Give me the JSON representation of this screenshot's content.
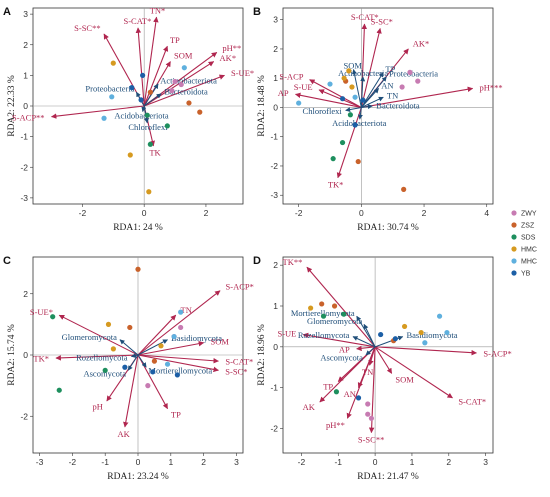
{
  "colors": {
    "env_arrow": "#b0264f",
    "taxon_arrow": "#1f4e79",
    "taxon_text": "#1f4e79"
  },
  "legend": {
    "items": [
      {
        "label": "ZWY",
        "color": "#c77bb2"
      },
      {
        "label": "ZSZ",
        "color": "#c9622b"
      },
      {
        "label": "SDS",
        "color": "#1e8f5e"
      },
      {
        "label": "HMC",
        "color": "#d69a20"
      },
      {
        "label": "MHC",
        "color": "#5fb0de"
      },
      {
        "label": "YB",
        "color": "#1c5fa6"
      }
    ]
  },
  "chart_data": [
    {
      "panel": "A",
      "type": "scatter",
      "xlabel": "RDA1: 24 %",
      "ylabel": "RDA2: 22.33 %",
      "xlim": [
        -3.6,
        3.2
      ],
      "ylim": [
        -3.2,
        3.2
      ],
      "xticks": [
        -2,
        0,
        2
      ],
      "yticks": [
        -3,
        -2,
        -1,
        0,
        1,
        2,
        3
      ],
      "env_vectors": [
        {
          "label": "TN*",
          "x": 0.4,
          "y": 2.9
        },
        {
          "label": "S-CAT*",
          "x": -0.2,
          "y": 2.55
        },
        {
          "label": "S-SC**",
          "x": -1.3,
          "y": 2.35
        },
        {
          "label": "TP",
          "x": 0.75,
          "y": 1.95
        },
        {
          "label": "SOM",
          "x": 0.85,
          "y": 1.45
        },
        {
          "label": "pH**",
          "x": 2.35,
          "y": 1.75
        },
        {
          "label": "AK*",
          "x": 2.25,
          "y": 1.45
        },
        {
          "label": "S-UE*",
          "x": 2.6,
          "y": 1.0
        },
        {
          "label": "S-ACP**",
          "x": -3.0,
          "y": -0.35
        },
        {
          "label": "TK",
          "x": 0.3,
          "y": -1.3
        }
      ],
      "taxa_vectors": [
        {
          "label": "Actinobacteriota",
          "x": 0.45,
          "y": 0.72
        },
        {
          "label": "Proteobacteria",
          "x": -0.25,
          "y": 0.45
        },
        {
          "label": "Bacteroidota",
          "x": 0.55,
          "y": 0.4
        },
        {
          "label": "Acidobacteriota",
          "x": -0.05,
          "y": -0.18
        },
        {
          "label": "Chloroflexi",
          "x": 0.1,
          "y": -0.55
        }
      ],
      "points": [
        {
          "group": "ZWY",
          "x": 1.0,
          "y": 0.8
        },
        {
          "group": "ZWY",
          "x": 1.2,
          "y": 0.7
        },
        {
          "group": "ZWY",
          "x": 0.9,
          "y": 0.5
        },
        {
          "group": "ZSZ",
          "x": 1.45,
          "y": 0.1
        },
        {
          "group": "ZSZ",
          "x": 1.8,
          "y": -0.2
        },
        {
          "group": "ZSZ",
          "x": 0.2,
          "y": 0.45
        },
        {
          "group": "SDS",
          "x": 0.2,
          "y": -1.25
        },
        {
          "group": "SDS",
          "x": 0.75,
          "y": -0.65
        },
        {
          "group": "SDS",
          "x": 0.1,
          "y": -0.3
        },
        {
          "group": "HMC",
          "x": -1.0,
          "y": 1.4
        },
        {
          "group": "HMC",
          "x": -0.45,
          "y": -1.6
        },
        {
          "group": "HMC",
          "x": 0.15,
          "y": -2.8
        },
        {
          "group": "MHC",
          "x": -1.05,
          "y": 0.3
        },
        {
          "group": "MHC",
          "x": -1.3,
          "y": -0.4
        },
        {
          "group": "MHC",
          "x": 1.3,
          "y": 1.25
        },
        {
          "group": "YB",
          "x": -0.4,
          "y": 0.6
        },
        {
          "group": "YB",
          "x": -0.05,
          "y": 1.0
        },
        {
          "group": "YB",
          "x": -0.1,
          "y": 0.2
        }
      ]
    },
    {
      "panel": "B",
      "type": "scatter",
      "xlabel": "RDA1: 30.74 %",
      "ylabel": "RDA2: 18.48 %",
      "xlim": [
        -2.5,
        4.2
      ],
      "ylim": [
        -3.3,
        3.4
      ],
      "xticks": [
        -2,
        0,
        2,
        4
      ],
      "yticks": [
        -3,
        -2,
        -1,
        0,
        1,
        2,
        3
      ],
      "env_vectors": [
        {
          "label": "S-CAT*",
          "x": 0.1,
          "y": 2.85
        },
        {
          "label": "S-SC*",
          "x": 0.6,
          "y": 2.7
        },
        {
          "label": "AK*",
          "x": 1.5,
          "y": 2.0
        },
        {
          "label": "pH***",
          "x": 3.55,
          "y": 0.65
        },
        {
          "label": "S-ACP",
          "x": -1.65,
          "y": 0.95
        },
        {
          "label": "AP",
          "x": -2.1,
          "y": 0.45
        },
        {
          "label": "S-UE",
          "x": -1.35,
          "y": 0.6
        },
        {
          "label": "TK*",
          "x": -0.75,
          "y": -2.4
        }
      ],
      "taxa_vectors": [
        {
          "label": "SOM",
          "x": -0.25,
          "y": 1.3
        },
        {
          "label": "Actinobacteria",
          "x": 0.05,
          "y": 1.05
        },
        {
          "label": "Proteobacteria",
          "x": 0.8,
          "y": 1.05
        },
        {
          "label": "TP",
          "x": 0.7,
          "y": 1.2
        },
        {
          "label": "AN",
          "x": 0.55,
          "y": 0.65
        },
        {
          "label": "TN",
          "x": 0.7,
          "y": 0.35
        },
        {
          "label": "Bacteroidota",
          "x": 0.35,
          "y": 0.05
        },
        {
          "label": "Chloroflexi",
          "x": -0.5,
          "y": -0.1
        },
        {
          "label": "Acidobacteriota",
          "x": -0.05,
          "y": -0.4
        }
      ],
      "points": [
        {
          "group": "ZWY",
          "x": 1.3,
          "y": 0.7
        },
        {
          "group": "ZWY",
          "x": 1.55,
          "y": 1.2
        },
        {
          "group": "ZWY",
          "x": 1.8,
          "y": 0.9
        },
        {
          "group": "ZSZ",
          "x": -0.5,
          "y": 0.9
        },
        {
          "group": "ZSZ",
          "x": 1.35,
          "y": -2.8
        },
        {
          "group": "ZSZ",
          "x": -0.1,
          "y": -1.85
        },
        {
          "group": "SDS",
          "x": -0.6,
          "y": -1.2
        },
        {
          "group": "SDS",
          "x": -0.35,
          "y": -0.25
        },
        {
          "group": "SDS",
          "x": -0.9,
          "y": -1.75
        },
        {
          "group": "HMC",
          "x": -0.4,
          "y": 1.25
        },
        {
          "group": "HMC",
          "x": -0.55,
          "y": 1.0
        },
        {
          "group": "HMC",
          "x": -0.3,
          "y": 0.7
        },
        {
          "group": "MHC",
          "x": -2.0,
          "y": 0.15
        },
        {
          "group": "MHC",
          "x": -0.2,
          "y": 0.35
        },
        {
          "group": "MHC",
          "x": -1.0,
          "y": 0.8
        },
        {
          "group": "YB",
          "x": -0.6,
          "y": 0.3
        },
        {
          "group": "YB",
          "x": 0.05,
          "y": 0.25
        },
        {
          "group": "YB",
          "x": -0.2,
          "y": -0.6
        }
      ]
    },
    {
      "panel": "C",
      "type": "scatter",
      "xlabel": "RDA1: 23.24 %",
      "ylabel": "RDA2: 15.74 %",
      "xlim": [
        -3.2,
        3.2
      ],
      "ylim": [
        -3.2,
        3.2
      ],
      "xticks": [
        -3,
        -2,
        -1,
        0,
        1,
        2,
        3
      ],
      "yticks": [
        -2,
        0,
        2
      ],
      "env_vectors": [
        {
          "label": "S-ACP*",
          "x": 2.5,
          "y": 2.1
        },
        {
          "label": "TN",
          "x": 1.15,
          "y": 1.3
        },
        {
          "label": "SOM",
          "x": 2.0,
          "y": 0.4
        },
        {
          "label": "S-UE*",
          "x": -2.4,
          "y": 1.3
        },
        {
          "label": "TK*",
          "x": -2.5,
          "y": -0.1
        },
        {
          "label": "S-CAT*",
          "x": 2.45,
          "y": -0.2
        },
        {
          "label": "S-SC*",
          "x": 2.45,
          "y": -0.5
        },
        {
          "label": "pH",
          "x": -0.95,
          "y": -1.5
        },
        {
          "label": "AK",
          "x": -0.4,
          "y": -2.35
        },
        {
          "label": "TP",
          "x": 0.9,
          "y": -1.75
        }
      ],
      "taxa_vectors": [
        {
          "label": "Glomeromycota",
          "x": -0.55,
          "y": 0.5
        },
        {
          "label": "Basidiomycota",
          "x": 0.9,
          "y": 0.5
        },
        {
          "label": "Rozellomycota",
          "x": -0.2,
          "y": -0.05
        },
        {
          "label": "Ascomycota",
          "x": -0.3,
          "y": -0.5
        },
        {
          "label": "Mortierellomycota",
          "x": 0.25,
          "y": -0.4
        }
      ],
      "points": [
        {
          "group": "ZWY",
          "x": 1.1,
          "y": 0.6
        },
        {
          "group": "ZWY",
          "x": 0.3,
          "y": -1.0
        },
        {
          "group": "ZWY",
          "x": 1.3,
          "y": 0.9
        },
        {
          "group": "ZSZ",
          "x": 0.0,
          "y": 2.8
        },
        {
          "group": "ZSZ",
          "x": -0.25,
          "y": 0.9
        },
        {
          "group": "ZSZ",
          "x": 0.5,
          "y": -0.2
        },
        {
          "group": "SDS",
          "x": -2.6,
          "y": 1.25
        },
        {
          "group": "SDS",
          "x": -2.4,
          "y": -1.15
        },
        {
          "group": "SDS",
          "x": -1.0,
          "y": -0.5
        },
        {
          "group": "HMC",
          "x": -0.9,
          "y": 1.0
        },
        {
          "group": "HMC",
          "x": -0.75,
          "y": 0.2
        },
        {
          "group": "HMC",
          "x": 0.7,
          "y": 0.3
        },
        {
          "group": "MHC",
          "x": 1.3,
          "y": 1.4
        },
        {
          "group": "MHC",
          "x": 0.9,
          "y": -0.3
        },
        {
          "group": "MHC",
          "x": 1.1,
          "y": 0.6
        },
        {
          "group": "YB",
          "x": -0.4,
          "y": -0.4
        },
        {
          "group": "YB",
          "x": 0.45,
          "y": -0.55
        },
        {
          "group": "YB",
          "x": 1.2,
          "y": -0.65
        }
      ]
    },
    {
      "panel": "D",
      "type": "scatter",
      "xlabel": "RDA1: 21.47 %",
      "ylabel": "RDA2: 18.96 %",
      "xlim": [
        -2.5,
        3.2
      ],
      "ylim": [
        -2.6,
        2.2
      ],
      "xticks": [
        -2,
        -1,
        0,
        1,
        2,
        3
      ],
      "yticks": [
        -2,
        -1,
        0,
        1,
        2
      ],
      "env_vectors": [
        {
          "label": "TK**",
          "x": -1.85,
          "y": 1.95
        },
        {
          "label": "S-UE",
          "x": -1.95,
          "y": 0.3
        },
        {
          "label": "S-ACP*",
          "x": 2.75,
          "y": -0.15
        },
        {
          "label": "S-CAT*",
          "x": 2.1,
          "y": -1.25
        },
        {
          "label": "SOM",
          "x": 0.45,
          "y": -0.65
        },
        {
          "label": "TN",
          "x": -0.15,
          "y": -0.45
        },
        {
          "label": "AN",
          "x": -0.45,
          "y": -1.0
        },
        {
          "label": "TP",
          "x": -1.0,
          "y": -0.85
        },
        {
          "label": "AK",
          "x": -1.5,
          "y": -1.35
        },
        {
          "label": "pH**",
          "x": -0.75,
          "y": -1.75
        },
        {
          "label": "S-SC**",
          "x": -0.1,
          "y": -2.1
        },
        {
          "label": "AP",
          "x": -0.5,
          "y": -0.05
        }
      ],
      "taxa_vectors": [
        {
          "label": "Mortierellomycota",
          "x": -0.5,
          "y": 0.75
        },
        {
          "label": "Glomeromycota",
          "x": -0.3,
          "y": 0.55
        },
        {
          "label": "Rozellomycota",
          "x": -0.6,
          "y": 0.25
        },
        {
          "label": "Basidiomycota",
          "x": 0.75,
          "y": 0.25
        },
        {
          "label": "Ascomycota",
          "x": -0.25,
          "y": -0.2
        }
      ],
      "points": [
        {
          "group": "ZWY",
          "x": -0.2,
          "y": -1.4
        },
        {
          "group": "ZWY",
          "x": -0.2,
          "y": -1.65
        },
        {
          "group": "ZWY",
          "x": -0.1,
          "y": -1.75
        },
        {
          "group": "ZSZ",
          "x": -1.45,
          "y": 1.05
        },
        {
          "group": "ZSZ",
          "x": -1.1,
          "y": 1.0
        },
        {
          "group": "ZSZ",
          "x": 0.5,
          "y": 0.15
        },
        {
          "group": "SDS",
          "x": -1.4,
          "y": 0.75
        },
        {
          "group": "SDS",
          "x": -0.85,
          "y": 0.8
        },
        {
          "group": "SDS",
          "x": -1.05,
          "y": -1.1
        },
        {
          "group": "HMC",
          "x": 1.25,
          "y": 0.35
        },
        {
          "group": "HMC",
          "x": -1.75,
          "y": 0.95
        },
        {
          "group": "HMC",
          "x": 0.8,
          "y": 0.5
        },
        {
          "group": "MHC",
          "x": 1.35,
          "y": 0.1
        },
        {
          "group": "MHC",
          "x": 1.95,
          "y": 0.35
        },
        {
          "group": "MHC",
          "x": 1.75,
          "y": 0.75
        },
        {
          "group": "YB",
          "x": -0.45,
          "y": -1.25
        },
        {
          "group": "YB",
          "x": 0.15,
          "y": 0.3
        },
        {
          "group": "YB",
          "x": 0.55,
          "y": 0.2
        }
      ]
    }
  ]
}
